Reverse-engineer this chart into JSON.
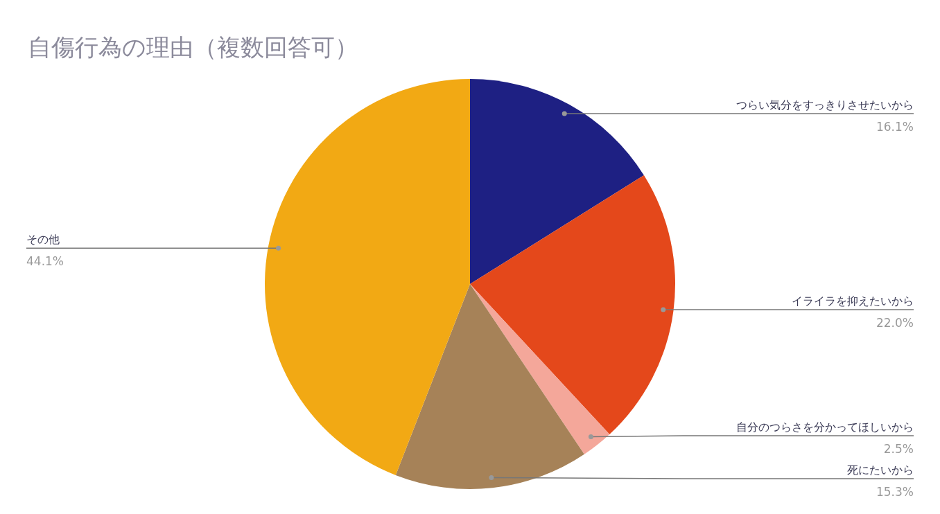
{
  "chart_data": {
    "type": "pie",
    "title": "自傷行為の理由（複数回答可）",
    "categories": [
      "つらい気分をすっきりさせたいから",
      "イライラを抑えたいから",
      "自分のつらさを分かってほしいから",
      "死にたいから",
      "その他"
    ],
    "values": [
      16.1,
      22.0,
      2.5,
      15.3,
      44.1
    ],
    "value_labels": [
      "16.1%",
      "22.0%",
      "2.5%",
      "15.3%",
      "44.1%"
    ],
    "colors": [
      "#1e2083",
      "#e4481b",
      "#f4a79a",
      "#a68258",
      "#f2a914"
    ]
  }
}
